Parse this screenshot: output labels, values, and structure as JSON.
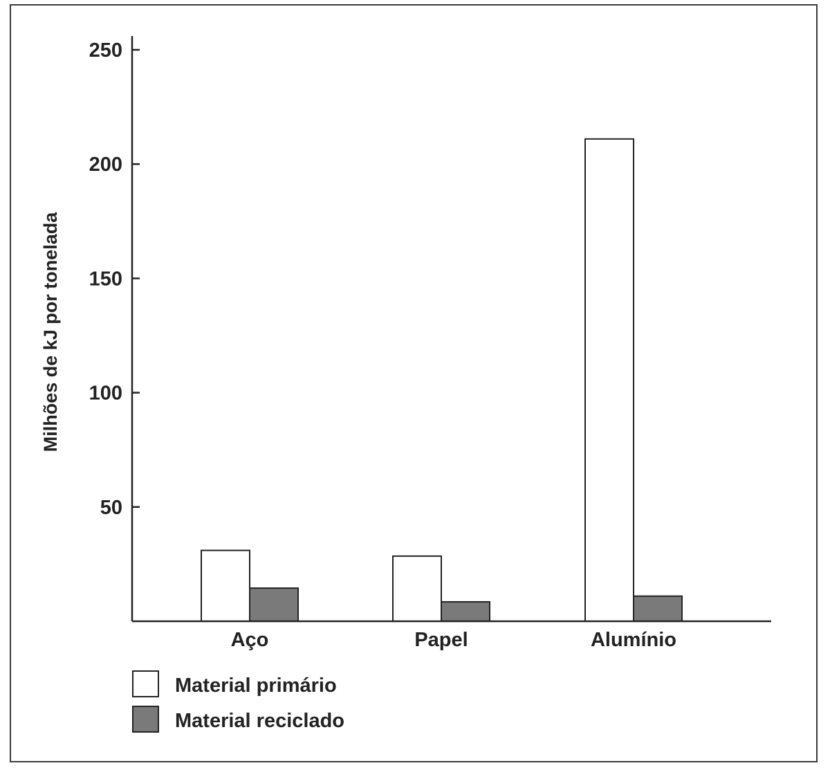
{
  "chart_data": {
    "type": "bar",
    "categories": [
      "Aço",
      "Papel",
      "Alumínio"
    ],
    "series": [
      {
        "name": "Material primário",
        "values": [
          31,
          28.5,
          211
        ],
        "color": "#ffffff"
      },
      {
        "name": "Material reciclado",
        "values": [
          14.5,
          8.5,
          11
        ],
        "color": "#7a7a7a"
      }
    ],
    "ylabel": "Milhões de kJ por tonelada",
    "ylim": [
      0,
      250
    ],
    "yticks": [
      "50",
      "100",
      "150",
      "200",
      "250"
    ],
    "legend": "bottom-left",
    "grid": false
  }
}
